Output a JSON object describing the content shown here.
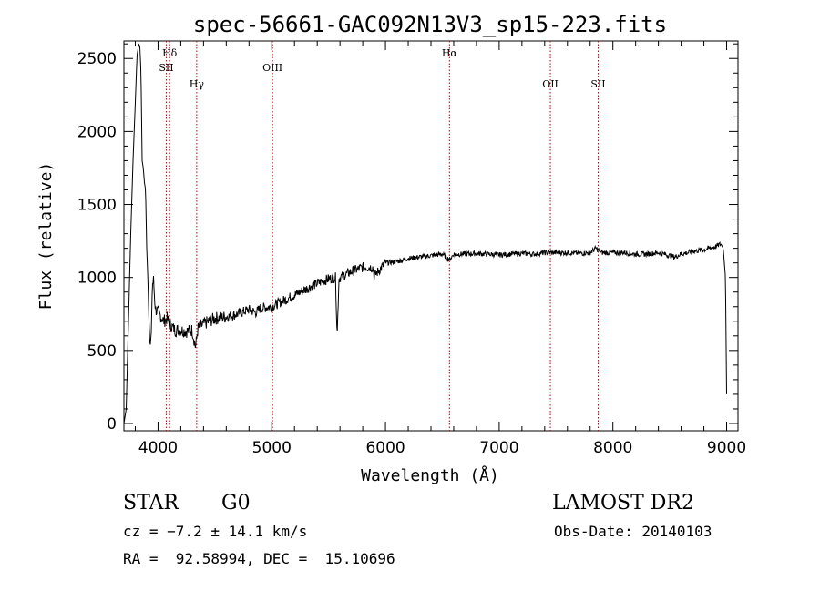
{
  "chart_data": {
    "type": "line",
    "title": "spec-56661-GAC092N13V3_sp15-223.fits",
    "xlabel": "Wavelength (Å)",
    "ylabel": "Flux (relative)",
    "xlim": [
      3700,
      9100
    ],
    "ylim": [
      -50,
      2620
    ],
    "xticks": [
      4000,
      5000,
      6000,
      7000,
      8000,
      9000
    ],
    "yticks": [
      0,
      500,
      1000,
      1500,
      2000,
      2500
    ],
    "grid": false,
    "line_color": "#000000",
    "marker_color": "#cc0000",
    "series": [
      {
        "x": [
          3700,
          3720,
          3740,
          3760,
          3780,
          3800,
          3815,
          3830,
          3840,
          3850,
          3860,
          3870,
          3880,
          3890,
          3900,
          3910,
          3920,
          3930,
          3940,
          3950,
          3960,
          3970,
          3980,
          4000,
          4020,
          4050,
          4080,
          4100,
          4150,
          4200,
          4250,
          4300,
          4330,
          4350,
          4400,
          4450,
          4500,
          4600,
          4700,
          4800,
          4860,
          4900,
          5000,
          5100,
          5200,
          5300,
          5400,
          5500,
          5560,
          5575,
          5590,
          5600,
          5700,
          5800,
          5890,
          5900,
          6000,
          6100,
          6200,
          6300,
          6400,
          6500,
          6563,
          6600,
          6700,
          6800,
          6900,
          7000,
          7100,
          7200,
          7300,
          7400,
          7500,
          7600,
          7700,
          7800,
          7850,
          7900,
          8000,
          8100,
          8200,
          8300,
          8400,
          8498,
          8542,
          8600,
          8662,
          8700,
          8800,
          8900,
          8950,
          8970,
          8990,
          9000
        ],
        "y": [
          0,
          100,
          700,
          1300,
          1800,
          2200,
          2520,
          2600,
          2580,
          2400,
          1800,
          1750,
          1650,
          1600,
          1200,
          1000,
          700,
          520,
          620,
          950,
          980,
          850,
          780,
          760,
          740,
          700,
          720,
          680,
          640,
          640,
          630,
          640,
          520,
          650,
          680,
          700,
          720,
          730,
          750,
          780,
          760,
          790,
          800,
          840,
          880,
          920,
          960,
          990,
          1000,
          600,
          990,
          1000,
          1040,
          1070,
          1070,
          1010,
          1100,
          1110,
          1130,
          1140,
          1150,
          1160,
          1120,
          1160,
          1160,
          1165,
          1160,
          1155,
          1160,
          1165,
          1160,
          1170,
          1170,
          1170,
          1165,
          1170,
          1200,
          1170,
          1170,
          1170,
          1160,
          1160,
          1170,
          1150,
          1140,
          1160,
          1170,
          1180,
          1190,
          1210,
          1230,
          1200,
          1000,
          200
        ]
      }
    ],
    "lines": [
      {
        "label": "Hδ",
        "x": 4102
      },
      {
        "label": "SII",
        "x": 4072
      },
      {
        "label": "Hγ",
        "x": 4340
      },
      {
        "label": "OIII",
        "x": 5007
      },
      {
        "label": "Hα",
        "x": 6563
      },
      {
        "label": "OII",
        "x": 7450
      },
      {
        "label": "SII",
        "x": 7870
      }
    ]
  },
  "info": {
    "object_class": "STAR",
    "subclass": "G0",
    "survey": "LAMOST DR2",
    "cz": "cz = −7.2 ± 14.1 km/s",
    "obs_date": "Obs-Date: 20140103",
    "coords": "RA =  92.58994, DEC =  15.10696"
  }
}
